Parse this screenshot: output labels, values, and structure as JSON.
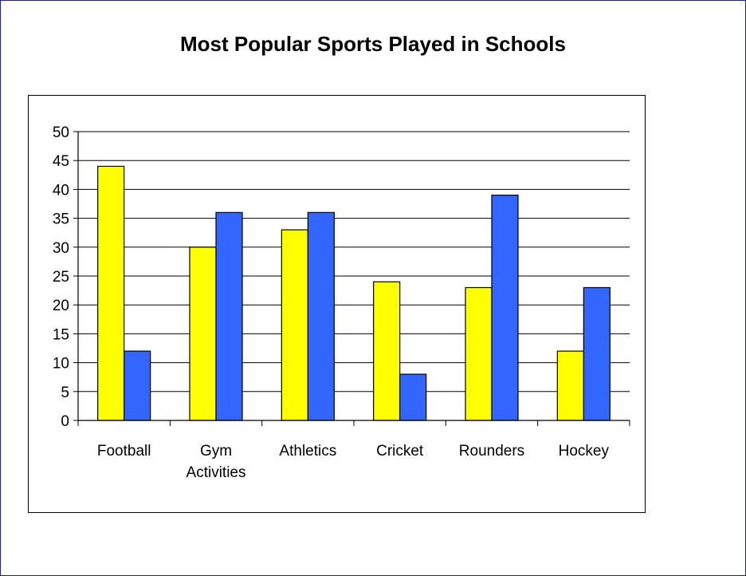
{
  "chart_data": {
    "type": "bar",
    "title": "Most Popular Sports Played in Schools",
    "xlabel": "",
    "ylabel": "",
    "categories": [
      "Football",
      "Gym Activities",
      "Athletics",
      "Cricket",
      "Rounders",
      "Hockey"
    ],
    "category_lines": [
      [
        "Football"
      ],
      [
        "Gym",
        "Activities"
      ],
      [
        "Athletics"
      ],
      [
        "Cricket"
      ],
      [
        "Rounders"
      ],
      [
        "Hockey"
      ]
    ],
    "series": [
      {
        "color": "#ffff00",
        "values": [
          44,
          30,
          33,
          24,
          23,
          12
        ]
      },
      {
        "color": "#3366ff",
        "values": [
          12,
          36,
          36,
          8,
          39,
          23
        ]
      }
    ],
    "ylim": [
      0,
      50
    ],
    "yticks": [
      "0",
      "5",
      "10",
      "15",
      "20",
      "25",
      "30",
      "35",
      "40",
      "45",
      "50"
    ],
    "grid": true,
    "legend": "none"
  }
}
